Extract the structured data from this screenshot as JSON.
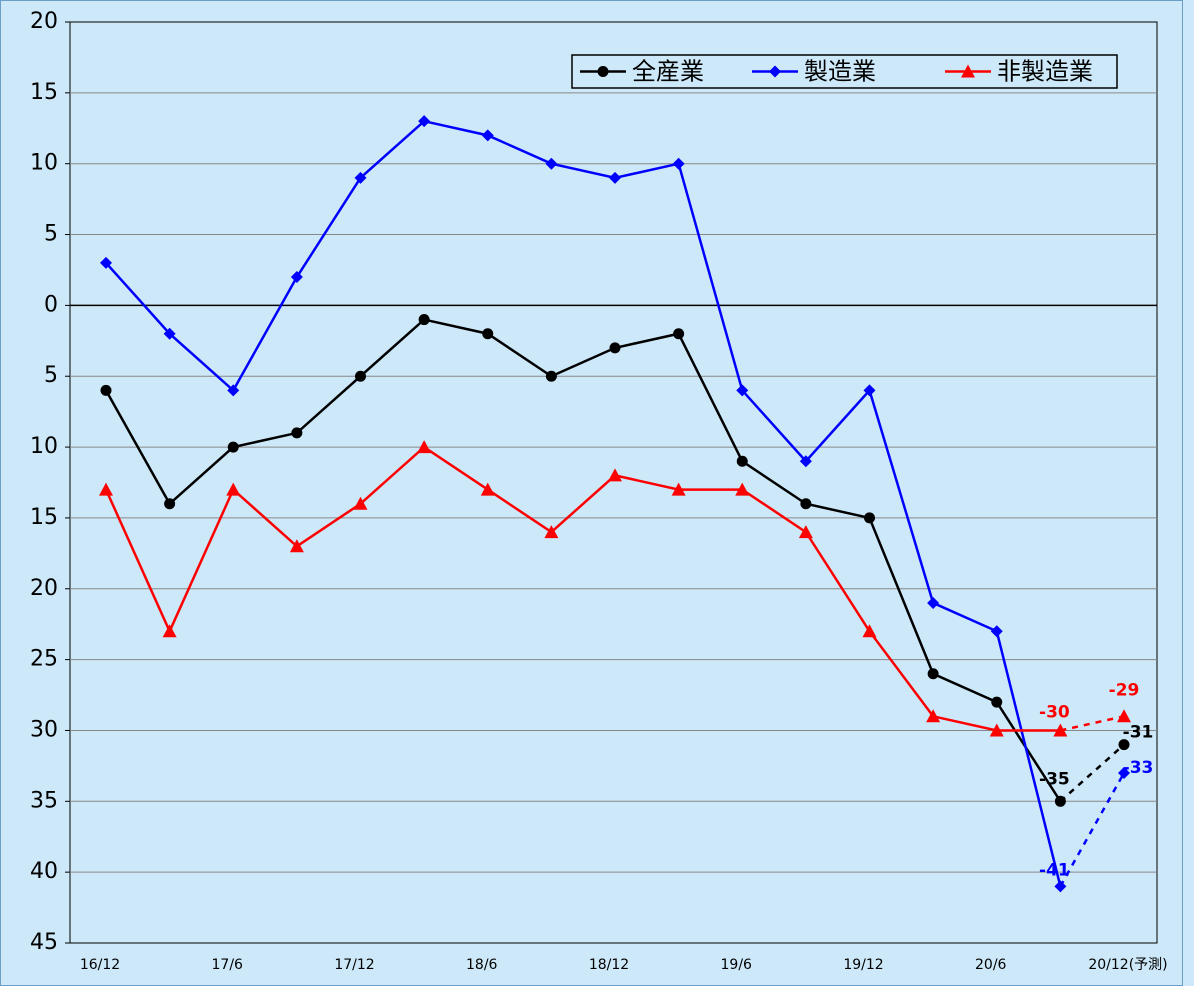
{
  "chart_data": {
    "type": "line",
    "categories": [
      "16/12",
      null,
      "17/6",
      null,
      "17/12",
      null,
      "18/6",
      null,
      "18/12",
      null,
      "19/6",
      null,
      "19/12",
      null,
      "20/6",
      null,
      "20/12(予測)"
    ],
    "series": [
      {
        "name": "全産業",
        "color": "#000000",
        "marker": "circle",
        "values": [
          -6,
          -14,
          -10,
          -9,
          -5,
          -1,
          -2,
          -5,
          -3,
          -2,
          -11,
          -14,
          -15,
          -26,
          -28,
          -35,
          -31
        ],
        "value_labels": [
          null,
          null,
          null,
          null,
          null,
          null,
          null,
          null,
          null,
          null,
          null,
          null,
          null,
          null,
          null,
          "-35",
          "-31"
        ]
      },
      {
        "name": "製造業",
        "color": "#0000ff",
        "marker": "diamond",
        "values": [
          3,
          -2,
          -6,
          2,
          9,
          13,
          12,
          10,
          9,
          10,
          -6,
          -11,
          -6,
          -21,
          -23,
          -41,
          -33
        ],
        "value_labels": [
          null,
          null,
          null,
          null,
          null,
          null,
          null,
          null,
          null,
          null,
          null,
          null,
          null,
          null,
          null,
          "-41",
          "-33"
        ]
      },
      {
        "name": "非製造業",
        "color": "#ff0000",
        "marker": "triangle",
        "values": [
          -13,
          -23,
          -13,
          -17,
          -14,
          -10,
          -13,
          -16,
          -12,
          -13,
          -13,
          -16,
          -23,
          -29,
          -30,
          -30,
          -29
        ],
        "value_labels": [
          null,
          null,
          null,
          null,
          null,
          null,
          null,
          null,
          null,
          null,
          null,
          null,
          null,
          null,
          null,
          "-30",
          "-29"
        ]
      }
    ],
    "dash_last_segment": true,
    "ylim": [
      -45,
      20
    ],
    "yticks": [
      {
        "value": -45,
        "label": "45"
      },
      {
        "value": -40,
        "label": "40"
      },
      {
        "value": -35,
        "label": "35"
      },
      {
        "value": -30,
        "label": "30"
      },
      {
        "value": -25,
        "label": "25"
      },
      {
        "value": -20,
        "label": "20"
      },
      {
        "value": -15,
        "label": "15"
      },
      {
        "value": -10,
        "label": "10"
      },
      {
        "value": -5,
        "label": "5"
      },
      0,
      5,
      10,
      15,
      20
    ],
    "grid": true,
    "legend": "top-right"
  }
}
